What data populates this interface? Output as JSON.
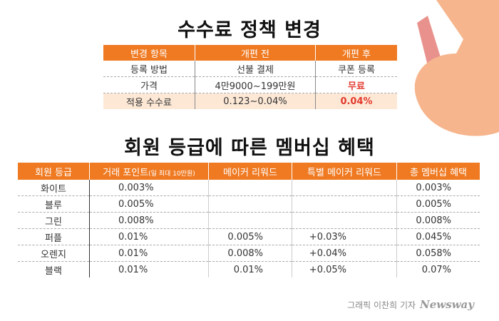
{
  "title1": "수수료 정책 변경",
  "fee_table": {
    "headers": [
      "변경 항목",
      "개편 전",
      "개편 후"
    ],
    "rows": [
      [
        "등록 방법",
        "선불 결제",
        "쿠폰 등록"
      ],
      [
        "가격",
        "4만9000~199만원",
        "무료"
      ],
      [
        "적용 수수료",
        "0.123~0.04%",
        "0.04%"
      ]
    ]
  },
  "title2": "회원 등급에 따른 멤버십 혜택",
  "member_table": {
    "headers": [
      "회원 등급",
      "거래 포인트",
      "메이커 리워드",
      "특별 메이커 리워드",
      "총 멤버십 혜택"
    ],
    "header_note": "(일 최대 10만원)",
    "rows": [
      [
        "화이트",
        "0.003%",
        "",
        "",
        "0.003%"
      ],
      [
        "블루",
        "0.005%",
        "",
        "",
        "0.005%"
      ],
      [
        "그린",
        "0.008%",
        "",
        "",
        "0.008%"
      ],
      [
        "퍼플",
        "0.01%",
        "0.005%",
        "+0.03%",
        "0.045%"
      ],
      [
        "오렌지",
        "0.01%",
        "0.008%",
        "+0.04%",
        "0.058%"
      ],
      [
        "블랙",
        "0.01%",
        "0.01%",
        "+0.05%",
        "0.07%"
      ]
    ]
  },
  "credit": {
    "text": "그래픽 이찬희 기자",
    "brand": "Newsway"
  },
  "colors": {
    "header": "#ef7a22",
    "highlight": "#e23a2e",
    "deco_peach": "#f6b58c",
    "deco_pink": "#e9928d"
  }
}
